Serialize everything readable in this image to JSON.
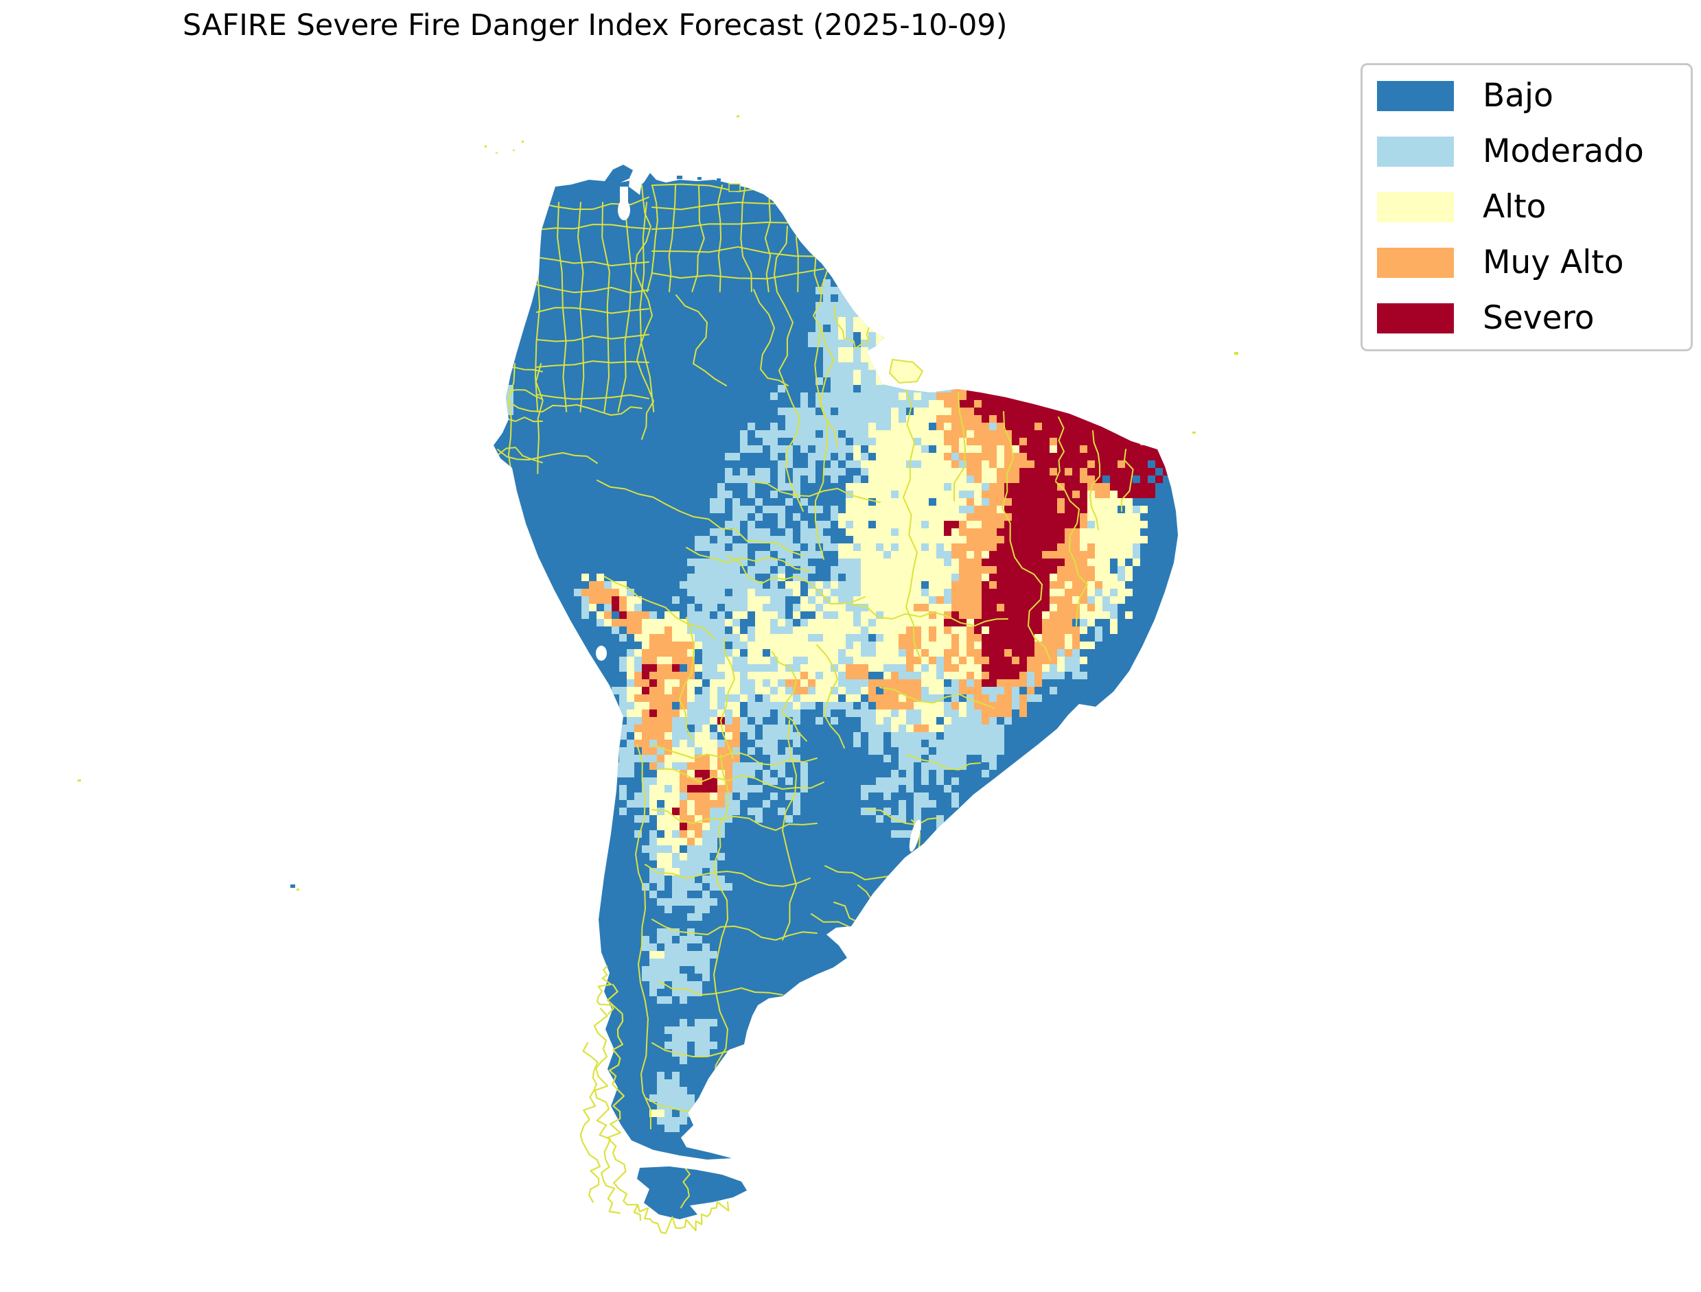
{
  "figure": {
    "title": "SAFIRE Severe Fire Danger Index Forecast (2025-10-09)",
    "background_color": "#ffffff"
  },
  "legend": {
    "border_color": "#c9c9c9",
    "text_color": "#000000",
    "items": [
      {
        "label": "Bajo",
        "color": "#2c7bb6"
      },
      {
        "label": "Moderado",
        "color": "#abd9e9"
      },
      {
        "label": "Alto",
        "color": "#ffffbf"
      },
      {
        "label": "Muy Alto",
        "color": "#fdae61"
      },
      {
        "label": "Severo",
        "color": "#a50026"
      }
    ]
  },
  "map": {
    "region_depicted": "South America",
    "admin_boundary_color": "#dce23e",
    "water_color": "#ffffff",
    "land_default_level": "Bajo"
  }
}
